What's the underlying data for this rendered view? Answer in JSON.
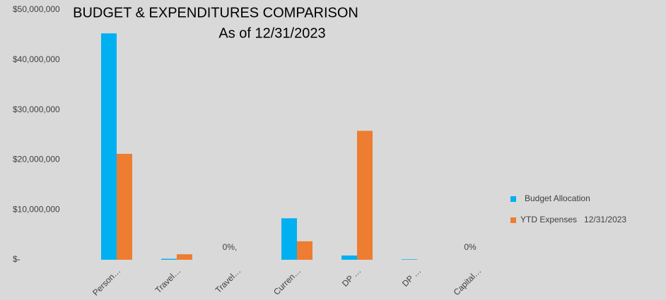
{
  "chart_data": {
    "type": "bar",
    "title": [
      "BUDGET & EXPENDITURES COMPARISON",
      "As of 12/31/2023"
    ],
    "categories": [
      "Person…",
      "Travel…",
      "Travel…",
      "Curren…",
      "DP …",
      "DP …",
      "Capital…"
    ],
    "series": [
      {
        "name": "Budget Allocation",
        "color": "#00b0f0",
        "values": [
          45300000,
          200000,
          0,
          8300000,
          850000,
          100000,
          0
        ]
      },
      {
        "name": "YTD Expenses   12/31/2023",
        "color": "#ed7d31",
        "values": [
          21200000,
          1100000,
          0,
          3700000,
          25800000,
          0,
          0
        ]
      }
    ],
    "ylim": [
      0,
      50000000
    ],
    "yticks": [
      {
        "value": 0,
        "label": "$-"
      },
      {
        "value": 10000000,
        "label": "$10,000,000"
      },
      {
        "value": 20000000,
        "label": "$20,000,000"
      },
      {
        "value": 30000000,
        "label": "$30,000,000"
      },
      {
        "value": 40000000,
        "label": "$40,000,000"
      },
      {
        "value": 50000000,
        "label": "$50,000,000"
      }
    ],
    "annotations": [
      {
        "text": "0%,",
        "category": 2
      },
      {
        "text": "0%",
        "category": 6
      }
    ],
    "legend": "right"
  }
}
